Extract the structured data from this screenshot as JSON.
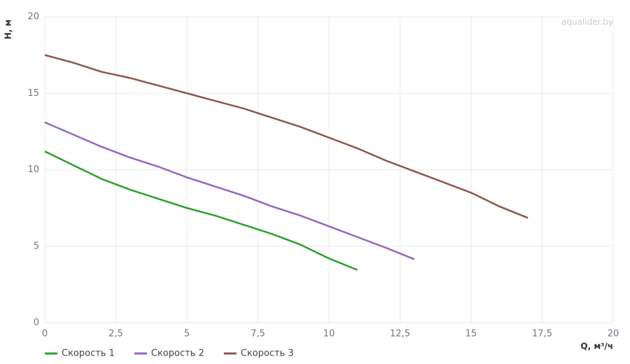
{
  "chart_data": {
    "type": "line",
    "watermark": "aqualider.by",
    "xlabel": "Q, м³/ч",
    "ylabel": "H, м",
    "xlim": [
      0,
      20
    ],
    "ylim": [
      0,
      20
    ],
    "xticks": [
      0,
      {
        "value": 2.5,
        "label": "2,5"
      },
      5,
      {
        "value": 7.5,
        "label": "7,5"
      },
      10,
      {
        "value": 12.5,
        "label": "12,5"
      },
      15,
      {
        "value": 17.5,
        "label": "17,5"
      },
      20
    ],
    "yticks": [
      0,
      5,
      10,
      15,
      20
    ],
    "grid": true,
    "legend": "bottom-left",
    "series": [
      {
        "name": "Скорость 1",
        "color": "#2ca02c",
        "x": [
          0,
          1,
          2,
          3,
          4,
          5,
          6,
          7,
          8,
          9,
          10,
          11
        ],
        "values": [
          11.2,
          10.3,
          9.4,
          8.7,
          8.1,
          7.5,
          7.0,
          6.4,
          5.8,
          5.1,
          4.2,
          3.45
        ]
      },
      {
        "name": "Скорость 2",
        "color": "#9467bd",
        "x": [
          0,
          1,
          2,
          3,
          4,
          5,
          6,
          7,
          8,
          9,
          10,
          11,
          12,
          13
        ],
        "values": [
          13.1,
          12.3,
          11.5,
          10.8,
          10.2,
          9.5,
          8.9,
          8.3,
          7.6,
          7.0,
          6.3,
          5.6,
          4.9,
          4.15
        ]
      },
      {
        "name": "Скорость 3",
        "color": "#8c564b",
        "x": [
          0,
          1,
          2,
          3,
          4,
          5,
          6,
          7,
          8,
          9,
          10,
          11,
          12,
          13,
          14,
          15,
          16,
          17
        ],
        "values": [
          17.5,
          17.0,
          16.4,
          16.0,
          15.5,
          15.0,
          14.5,
          14.0,
          13.4,
          12.8,
          12.1,
          11.4,
          10.6,
          9.9,
          9.2,
          8.5,
          7.6,
          6.85
        ]
      }
    ]
  }
}
